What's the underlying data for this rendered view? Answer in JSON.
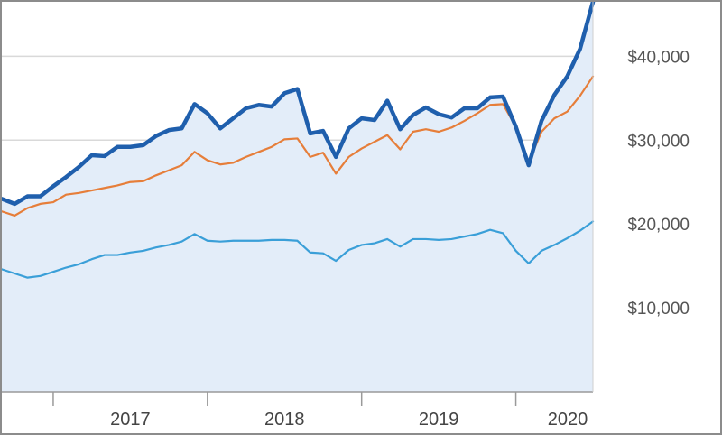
{
  "chart_data": {
    "type": "line",
    "title": "",
    "xlabel": "",
    "ylabel": "",
    "x_tick_labels": [
      "2017",
      "2018",
      "2019",
      "2020"
    ],
    "y_tick_labels": [
      "$10,000",
      "$20,000",
      "$30,000",
      "$40,000"
    ],
    "y_tick_values": [
      10000,
      20000,
      30000,
      40000
    ],
    "ylim": [
      0,
      46500
    ],
    "xlim": [
      "2016-09",
      "2020-07"
    ],
    "x": [
      "2016-09",
      "2016-10",
      "2016-11",
      "2016-12",
      "2017-01",
      "2017-02",
      "2017-03",
      "2017-04",
      "2017-05",
      "2017-06",
      "2017-07",
      "2017-08",
      "2017-09",
      "2017-10",
      "2017-11",
      "2017-12",
      "2018-01",
      "2018-02",
      "2018-03",
      "2018-04",
      "2018-05",
      "2018-06",
      "2018-07",
      "2018-08",
      "2018-09",
      "2018-10",
      "2018-11",
      "2018-12",
      "2019-01",
      "2019-02",
      "2019-03",
      "2019-04",
      "2019-05",
      "2019-06",
      "2019-07",
      "2019-08",
      "2019-09",
      "2019-10",
      "2019-11",
      "2019-12",
      "2020-01",
      "2020-02",
      "2020-03",
      "2020-04",
      "2020-05",
      "2020-06",
      "2020-07"
    ],
    "grid": true,
    "legend": "none",
    "series": [
      {
        "color": "#1f5fad",
        "filled": true,
        "values": [
          23000,
          22400,
          23300,
          23300,
          24500,
          25600,
          26800,
          28200,
          28100,
          29200,
          29200,
          29400,
          30500,
          31200,
          31400,
          34300,
          33200,
          31400,
          32600,
          33800,
          34200,
          34000,
          35600,
          36100,
          30800,
          31100,
          28000,
          31400,
          32600,
          32400,
          34700,
          31300,
          33000,
          33900,
          33100,
          32700,
          33800,
          33800,
          35100,
          35200,
          31600,
          27000,
          32300,
          35400,
          37600,
          40900,
          46500
        ]
      },
      {
        "color": "#e67e3a",
        "filled": false,
        "values": [
          21500,
          21000,
          21900,
          22400,
          22600,
          23500,
          23700,
          24000,
          24300,
          24600,
          25000,
          25100,
          25800,
          26400,
          27000,
          28600,
          27600,
          27100,
          27300,
          28000,
          28600,
          29200,
          30100,
          30200,
          28000,
          28500,
          26000,
          28000,
          29000,
          29800,
          30600,
          28900,
          31000,
          31300,
          31000,
          31500,
          32300,
          33200,
          34200,
          34300,
          31600,
          27400,
          31000,
          32600,
          33400,
          35300,
          37600
        ]
      },
      {
        "color": "#3a9fd8",
        "filled": false,
        "values": [
          14600,
          14100,
          13600,
          13800,
          14300,
          14800,
          15200,
          15800,
          16300,
          16300,
          16600,
          16800,
          17200,
          17500,
          17900,
          18800,
          18000,
          17900,
          18000,
          18000,
          18000,
          18100,
          18100,
          18000,
          16600,
          16500,
          15600,
          16900,
          17500,
          17700,
          18200,
          17300,
          18200,
          18200,
          18100,
          18200,
          18500,
          18800,
          19300,
          18900,
          16800,
          15300,
          16800,
          17500,
          18300,
          19200,
          20300
        ]
      }
    ]
  }
}
